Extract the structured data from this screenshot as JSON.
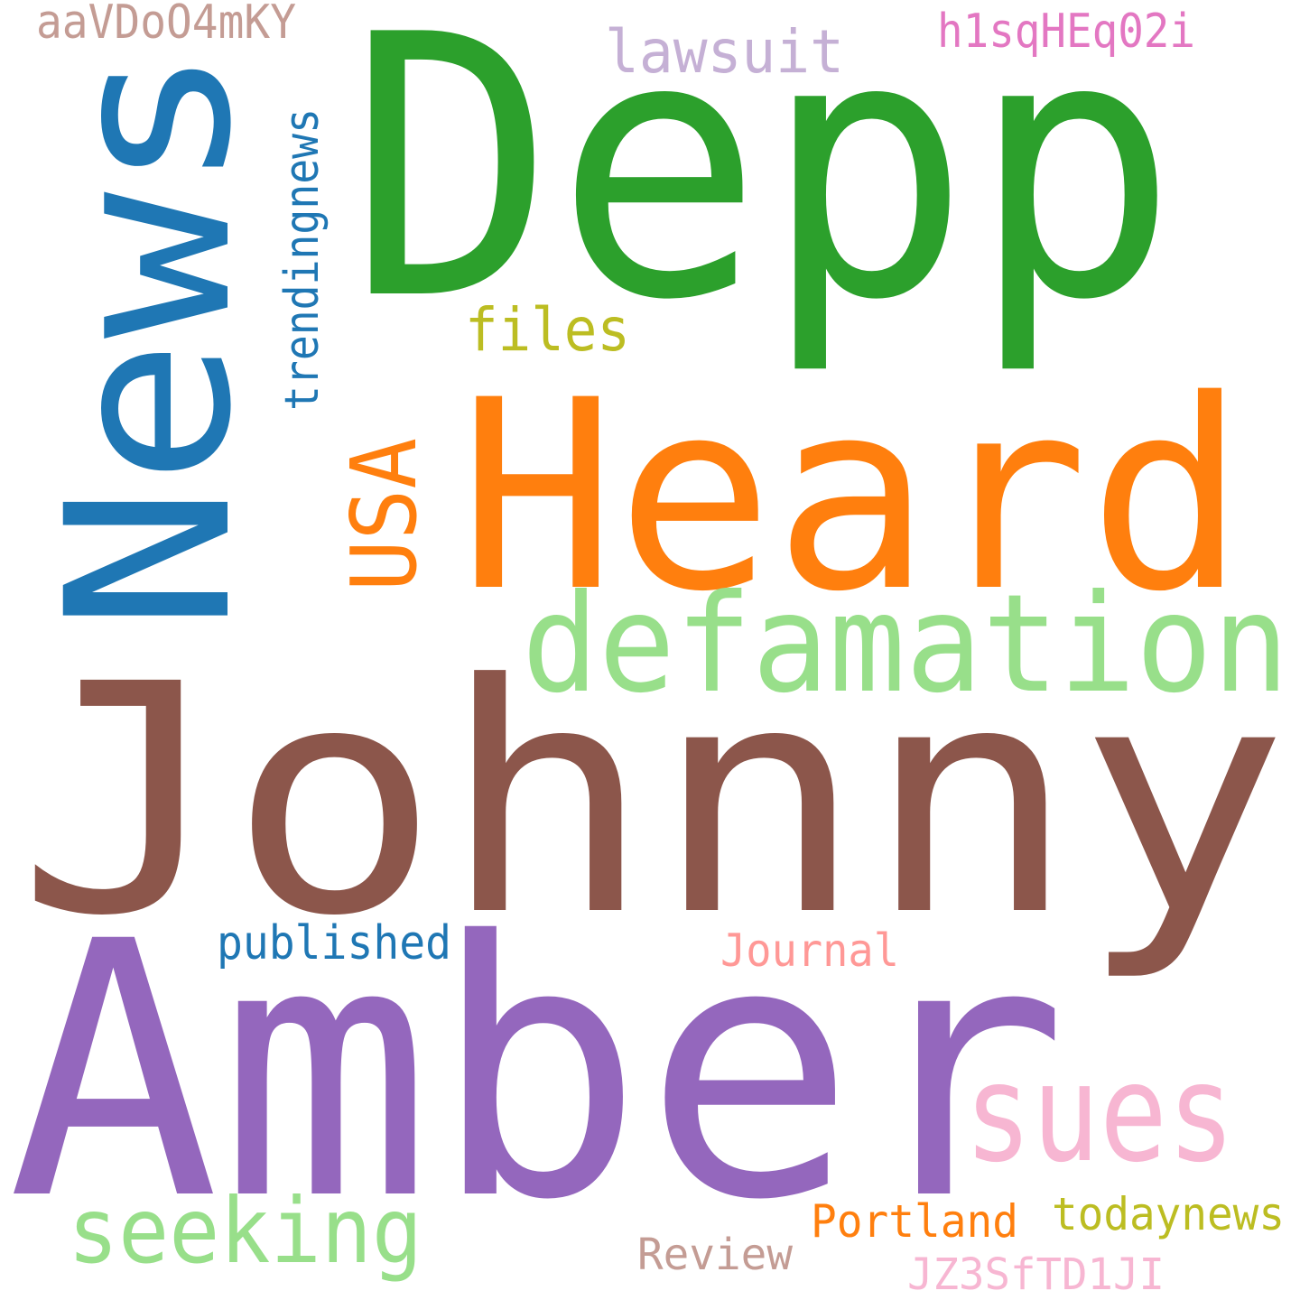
{
  "words": [
    {
      "text": "Johnny",
      "color": "#8c564b"
    },
    {
      "text": "Amber",
      "color": "#9467bd"
    },
    {
      "text": "Depp",
      "color": "#2ca02c"
    },
    {
      "text": "Heard",
      "color": "#ff7f0e"
    },
    {
      "text": "News",
      "color": "#1f77b4"
    },
    {
      "text": "defamation",
      "color": "#98df8a"
    },
    {
      "text": "sues",
      "color": "#f7b6d2"
    },
    {
      "text": "seeking",
      "color": "#98df8a"
    },
    {
      "text": "USA",
      "color": "#ff7f0e"
    },
    {
      "text": "files",
      "color": "#bcbd22"
    },
    {
      "text": "lawsuit",
      "color": "#c5b0d5"
    },
    {
      "text": "trendingnews",
      "color": "#1f77b4"
    },
    {
      "text": "aaVDoO4mKY",
      "color": "#c49c94"
    },
    {
      "text": "h1sqHEq02i",
      "color": "#e377c2"
    },
    {
      "text": "published",
      "color": "#1f77b4"
    },
    {
      "text": "Journal",
      "color": "#ff9896"
    },
    {
      "text": "Portland",
      "color": "#ff7f0e"
    },
    {
      "text": "todaynews",
      "color": "#bcbd22"
    },
    {
      "text": "Review",
      "color": "#c49c94"
    },
    {
      "text": "JZ3SfTD1JI",
      "color": "#f7b6d2"
    }
  ]
}
